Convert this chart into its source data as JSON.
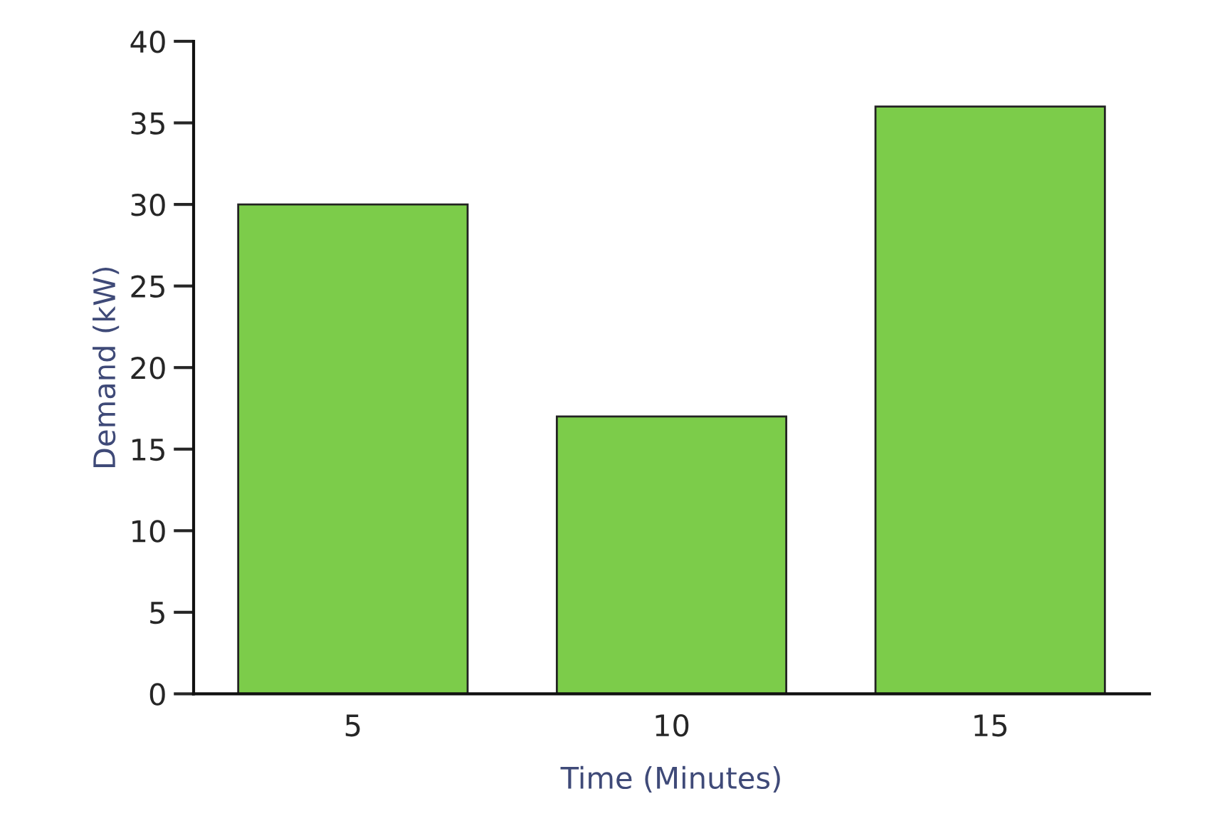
{
  "chart_data": {
    "type": "bar",
    "xlabel": "Time (Minutes)",
    "ylabel": "Demand (kW)",
    "categories": [
      "5",
      "10",
      "15"
    ],
    "values": [
      30,
      17,
      36
    ],
    "color": "#7ccc4a",
    "ylim": [
      0,
      40
    ],
    "yticks": [
      0,
      5,
      10,
      15,
      20,
      25,
      30,
      35,
      40
    ],
    "grid": false,
    "legend": false
  }
}
